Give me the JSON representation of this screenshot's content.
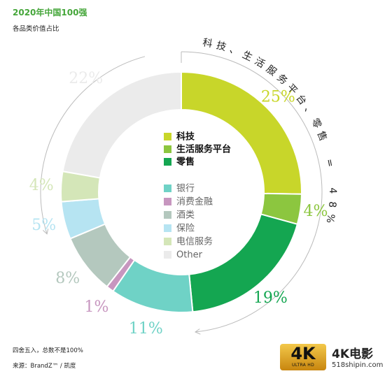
{
  "title": "2020年中国100强",
  "subtitle": "各品类价值占比",
  "chart_data": {
    "type": "donut",
    "title": "2020年中国100强",
    "subtitle": "各品类价值占比",
    "slices": [
      {
        "name": "科技",
        "value": 25,
        "label": "25%",
        "color": "#c8d62a"
      },
      {
        "name": "生活服务平台",
        "value": 4,
        "label": "4%",
        "color": "#8cc63f"
      },
      {
        "name": "零售",
        "value": 19,
        "label": "19%",
        "color": "#14a651"
      },
      {
        "name": "银行",
        "value": 11,
        "label": "11%",
        "color": "#6fd2c6"
      },
      {
        "name": "消费金融",
        "value": 1,
        "label": "1%",
        "color": "#c796bf"
      },
      {
        "name": "酒类",
        "value": 8,
        "label": "8%",
        "color": "#b4c8be"
      },
      {
        "name": "保险",
        "value": 5,
        "label": "5%",
        "color": "#b6e4f2"
      },
      {
        "name": "电信服务",
        "value": 4,
        "label": "4%",
        "color": "#d4e6b8"
      },
      {
        "name": "Other",
        "value": 22,
        "label": "22%",
        "color": "#ebebeb"
      }
    ],
    "legend_primary": [
      "科技",
      "生活服务平台",
      "零售"
    ],
    "legend_secondary": [
      "银行",
      "消费金融",
      "酒类",
      "保险",
      "电信服务",
      "Other"
    ],
    "annotation": "科技、生活服务平台、零售 = 48%"
  },
  "footnote": "四舍五入，总数不是100%",
  "source": "来源：BrandZ™ / 凯度",
  "watermark": {
    "badge": "4K",
    "badge_sub": "ULTRA HD",
    "brand": "4K电影",
    "url": "518shipin.com"
  }
}
